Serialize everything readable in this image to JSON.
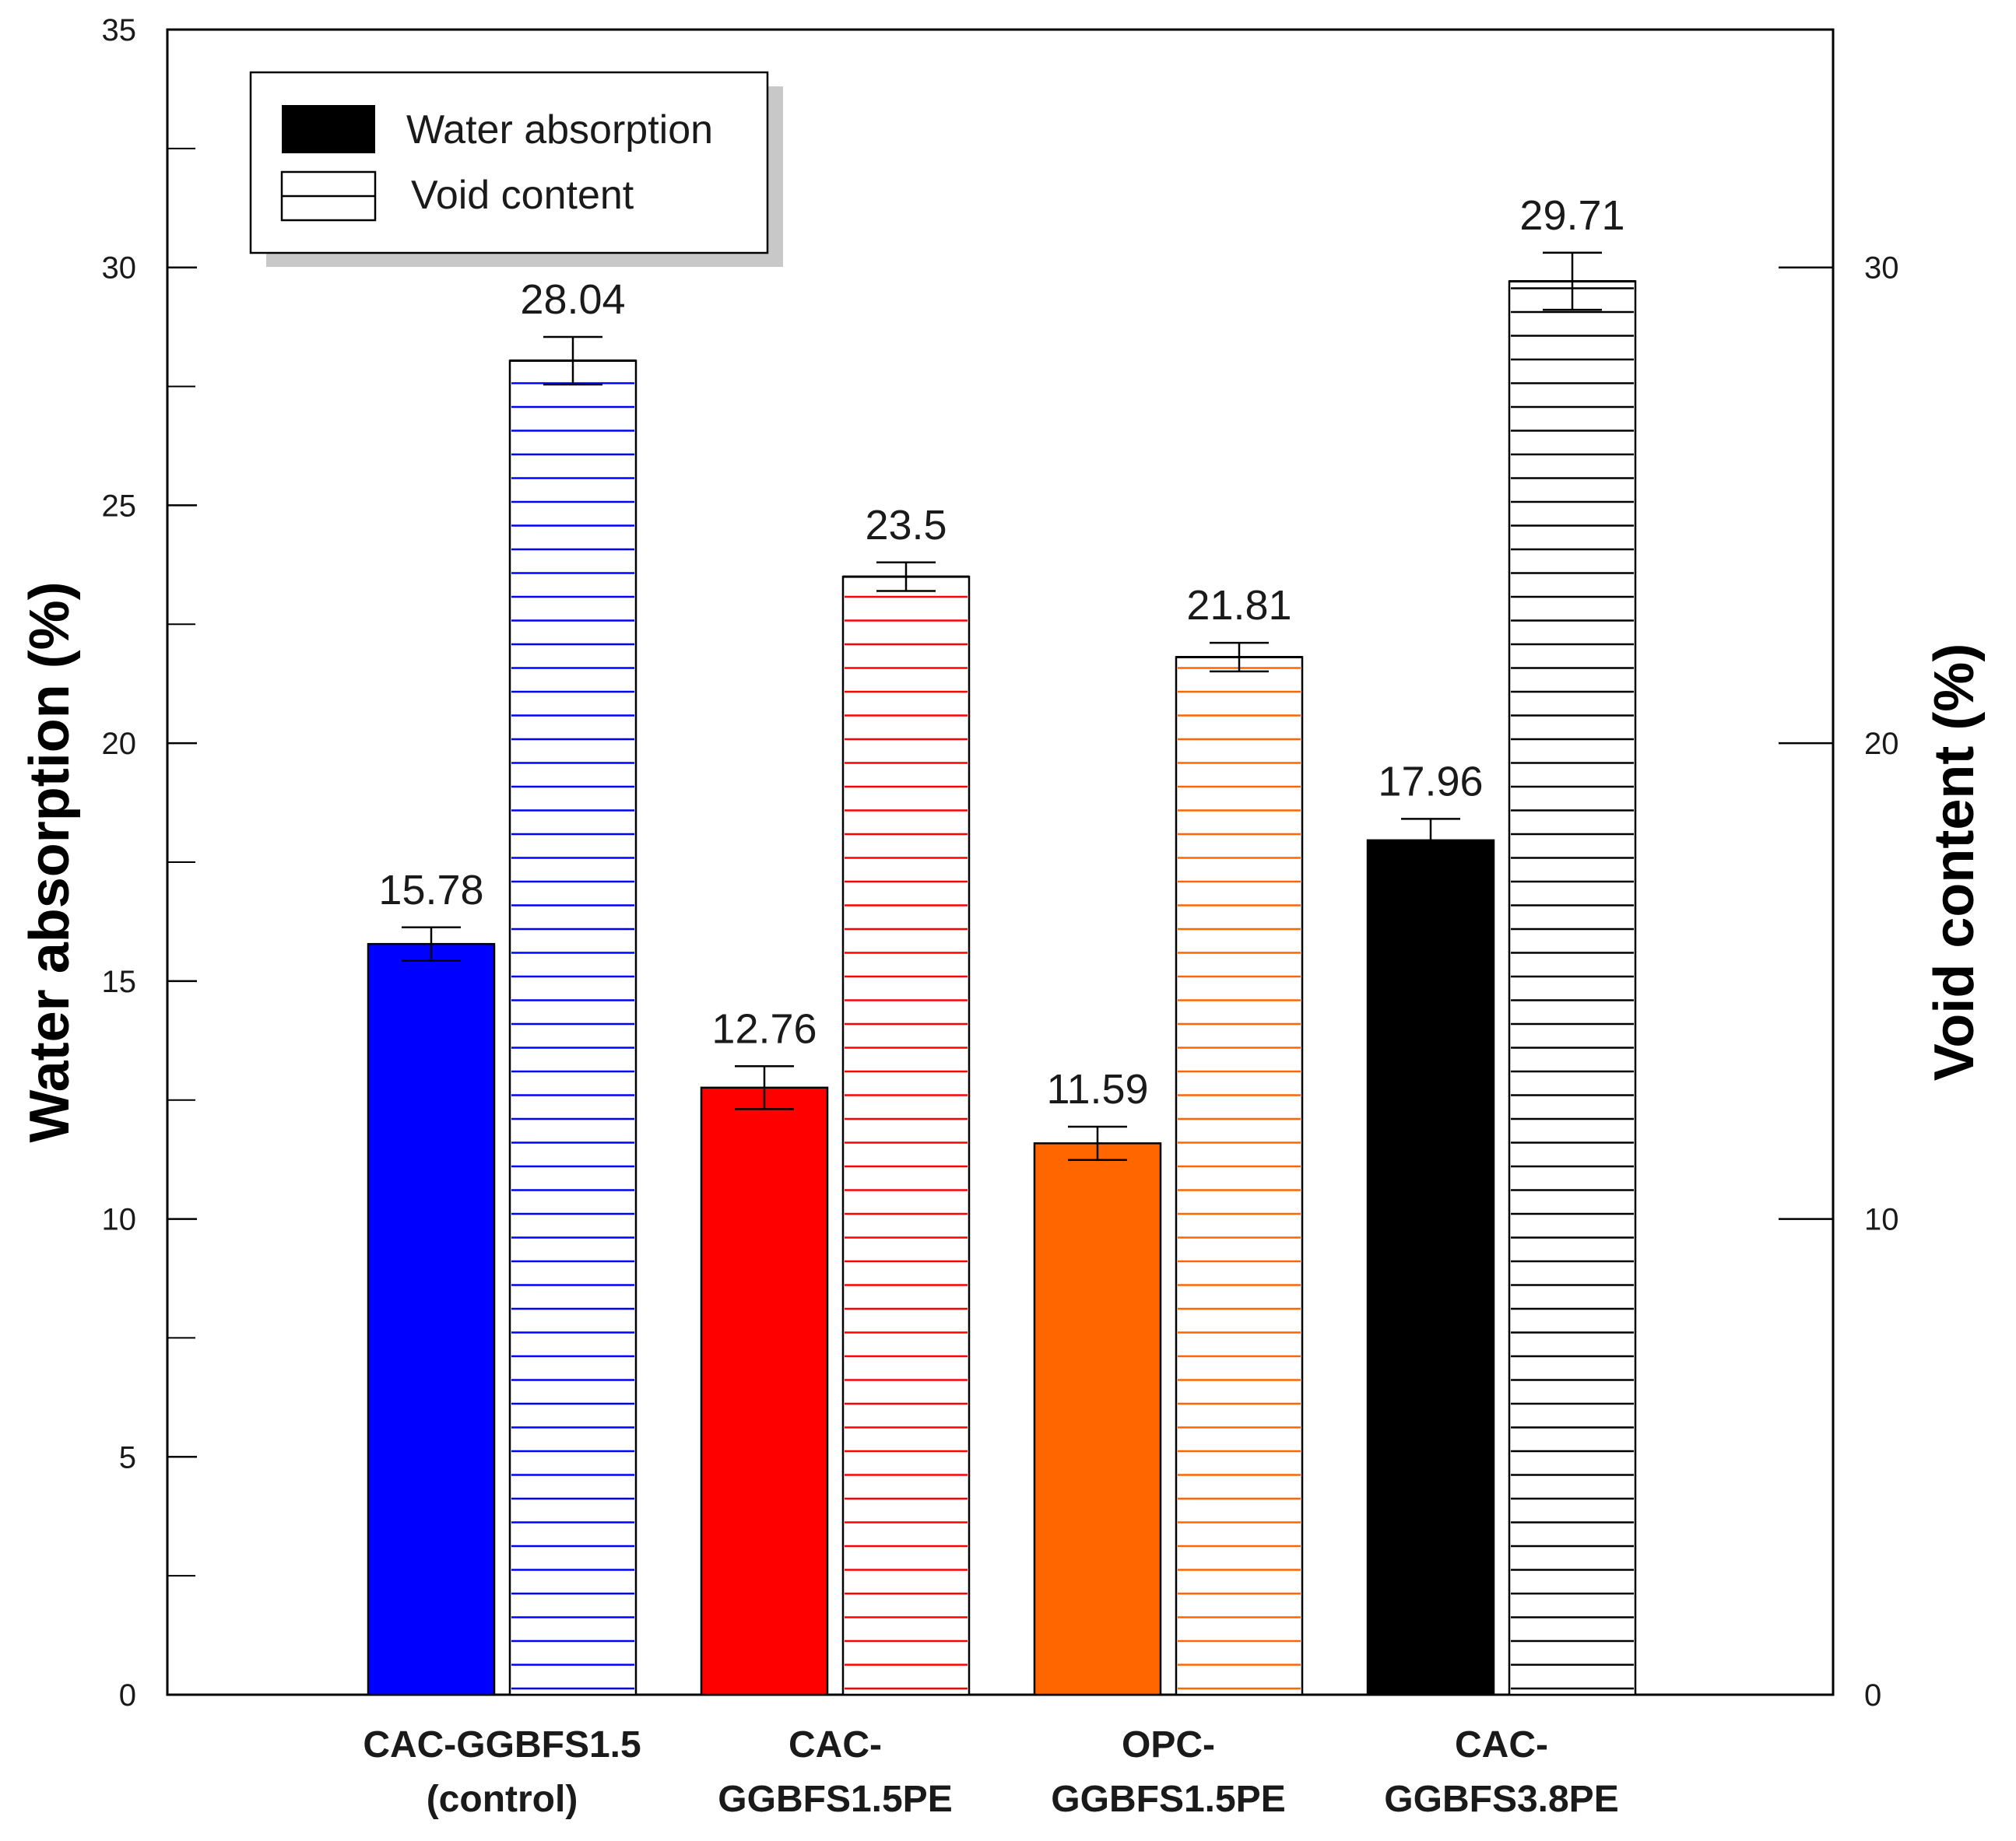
{
  "chart_data": {
    "type": "bar",
    "categories": [
      {
        "line1": "CAC-GGBFS1.5",
        "line2": "(control)"
      },
      {
        "line1": "CAC-",
        "line2": "GGBFS1.5PE"
      },
      {
        "line1": "OPC-",
        "line2": "GGBFS1.5PE"
      },
      {
        "line1": "CAC-",
        "line2": "GGBFS3.8PE"
      }
    ],
    "colors": [
      "#0000ff",
      "#ff0000",
      "#ff6600",
      "#000000"
    ],
    "series": [
      {
        "name": "Water absorption",
        "axis": "left",
        "pattern": "solid",
        "values": [
          15.78,
          12.76,
          11.59,
          17.96
        ],
        "labels": [
          "15.78",
          "12.76",
          "11.59",
          "17.96"
        ],
        "errors": [
          0.35,
          0.45,
          0.35,
          0.45
        ]
      },
      {
        "name": "Void content",
        "axis": "right",
        "pattern": "horizontal-lines",
        "values": [
          28.04,
          23.5,
          21.81,
          29.71
        ],
        "labels": [
          "28.04",
          "23.5",
          "21.81",
          "29.71"
        ],
        "errors": [
          0.5,
          0.3,
          0.3,
          0.6
        ]
      }
    ],
    "left_axis": {
      "label": "Water absorption (%)",
      "range": [
        0,
        35
      ],
      "ticks": [
        0,
        5,
        10,
        15,
        20,
        25,
        30,
        35
      ],
      "tick_labels": [
        "0",
        "5",
        "10",
        "15",
        "20",
        "25",
        "30",
        "35"
      ]
    },
    "right_axis": {
      "label": "Void content (%)",
      "range": [
        0,
        35
      ],
      "ticks": [
        0,
        10,
        20,
        30
      ],
      "tick_labels": [
        "0",
        "10",
        "20",
        "30"
      ]
    },
    "legend": {
      "position": "top-left",
      "items": [
        {
          "label": "Water absorption",
          "pattern": "solid"
        },
        {
          "label": "Void content",
          "pattern": "horizontal-lines"
        }
      ]
    },
    "grid": false
  }
}
